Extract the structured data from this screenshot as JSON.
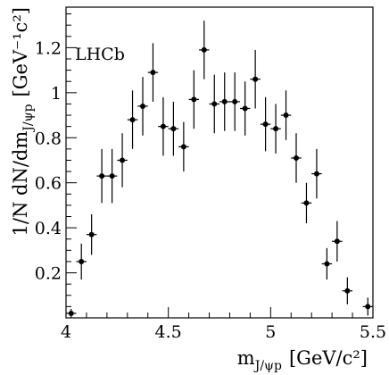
{
  "chart_data": {
    "type": "scatter",
    "annotation": "LHCb",
    "xlabel_main": "m",
    "xlabel_sub": "J/ψp",
    "xlabel_unit": "[GeV/c²]",
    "ylabel_main": "1/N dN/dm",
    "ylabel_sub": "J/ψp",
    "ylabel_unit": "[GeV⁻¹c²]",
    "xlim": [
      4.0,
      5.5
    ],
    "ylim": [
      0.0,
      1.38
    ],
    "x_ticks": [
      4,
      4.5,
      5,
      5.5
    ],
    "x_tick_labels": [
      "4",
      "4.5",
      "5",
      "5.5"
    ],
    "y_ticks": [
      0.2,
      0.4,
      0.6,
      0.8,
      1.0,
      1.2
    ],
    "y_tick_labels": [
      "0.2",
      "0.4",
      "0.6",
      "0.8",
      "1",
      "1.2"
    ],
    "x_bin_half_width": 0.025,
    "x": [
      4.025,
      4.075,
      4.125,
      4.175,
      4.225,
      4.275,
      4.325,
      4.375,
      4.425,
      4.475,
      4.525,
      4.575,
      4.625,
      4.675,
      4.725,
      4.775,
      4.825,
      4.875,
      4.925,
      4.975,
      5.025,
      5.075,
      5.125,
      5.175,
      5.225,
      5.275,
      5.325,
      5.375,
      5.475
    ],
    "y": [
      0.02,
      0.25,
      0.37,
      0.63,
      0.63,
      0.7,
      0.88,
      0.94,
      1.09,
      0.85,
      0.84,
      0.76,
      0.97,
      1.19,
      0.95,
      0.96,
      0.96,
      0.93,
      1.06,
      0.86,
      0.84,
      0.9,
      0.71,
      0.51,
      0.64,
      0.24,
      0.34,
      0.12,
      0.05
    ],
    "yerr": [
      0.02,
      0.08,
      0.09,
      0.12,
      0.12,
      0.12,
      0.13,
      0.13,
      0.13,
      0.13,
      0.12,
      0.11,
      0.13,
      0.13,
      0.13,
      0.13,
      0.13,
      0.12,
      0.13,
      0.12,
      0.11,
      0.11,
      0.11,
      0.09,
      0.11,
      0.07,
      0.09,
      0.06,
      0.04
    ],
    "grid": false,
    "legend": "none"
  }
}
